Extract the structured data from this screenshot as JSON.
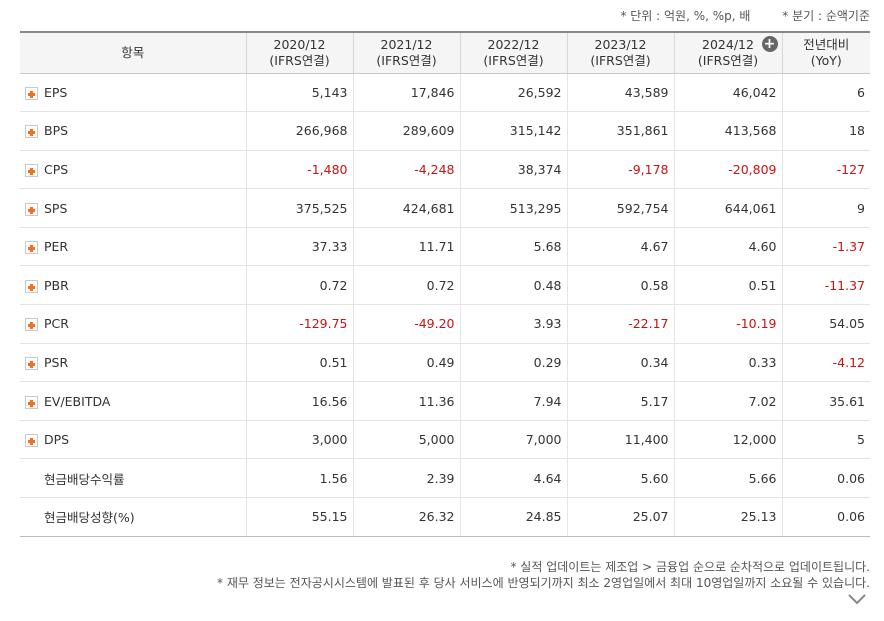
{
  "units": {
    "unit": "* 단위 : 억원, %, %p, 배",
    "basis": "* 분기 : 순액기준"
  },
  "headers": [
    {
      "line1": "항목",
      "line2": ""
    },
    {
      "line1": "2020/12",
      "line2": "(IFRS연결)"
    },
    {
      "line1": "2021/12",
      "line2": "(IFRS연결)"
    },
    {
      "line1": "2022/12",
      "line2": "(IFRS연결)"
    },
    {
      "line1": "2023/12",
      "line2": "(IFRS연결)"
    },
    {
      "line1": "2024/12",
      "line2": "(IFRS연결)"
    },
    {
      "line1": "전년대비",
      "line2": "(YoY)"
    }
  ],
  "add_column_icon": "+",
  "rows": [
    {
      "label": "EPS",
      "expandable": true,
      "values": [
        "5,143",
        "17,846",
        "26,592",
        "43,589",
        "46,042",
        "6"
      ]
    },
    {
      "label": "BPS",
      "expandable": true,
      "values": [
        "266,968",
        "289,609",
        "315,142",
        "351,861",
        "413,568",
        "18"
      ]
    },
    {
      "label": "CPS",
      "expandable": true,
      "values": [
        "-1,480",
        "-4,248",
        "38,374",
        "-9,178",
        "-20,809",
        "-127"
      ]
    },
    {
      "label": "SPS",
      "expandable": true,
      "values": [
        "375,525",
        "424,681",
        "513,295",
        "592,754",
        "644,061",
        "9"
      ]
    },
    {
      "label": "PER",
      "expandable": true,
      "values": [
        "37.33",
        "11.71",
        "5.68",
        "4.67",
        "4.60",
        "-1.37"
      ]
    },
    {
      "label": "PBR",
      "expandable": true,
      "values": [
        "0.72",
        "0.72",
        "0.48",
        "0.58",
        "0.51",
        "-11.37"
      ]
    },
    {
      "label": "PCR",
      "expandable": true,
      "values": [
        "-129.75",
        "-49.20",
        "3.93",
        "-22.17",
        "-10.19",
        "54.05"
      ]
    },
    {
      "label": "PSR",
      "expandable": true,
      "values": [
        "0.51",
        "0.49",
        "0.29",
        "0.34",
        "0.33",
        "-4.12"
      ]
    },
    {
      "label": "EV/EBITDA",
      "expandable": true,
      "values": [
        "16.56",
        "11.36",
        "7.94",
        "5.17",
        "7.02",
        "35.61"
      ]
    },
    {
      "label": "DPS",
      "expandable": true,
      "values": [
        "3,000",
        "5,000",
        "7,000",
        "11,400",
        "12,000",
        "5"
      ]
    },
    {
      "label": "현금배당수익률",
      "expandable": false,
      "values": [
        "1.56",
        "2.39",
        "4.64",
        "5.60",
        "5.66",
        "0.06"
      ]
    },
    {
      "label": "현금배당성향(%)",
      "expandable": false,
      "values": [
        "55.15",
        "26.32",
        "24.85",
        "25.07",
        "25.13",
        "0.06"
      ]
    }
  ],
  "notes": [
    "* 실적 업데이트는 제조업 > 금융업 순으로 순차적으로 업데이트됩니다.",
    "* 재무 정보는 전자공시시스템에 발표된 후 당사 서비스에 반영되기까지 최소 2영업일에서 최대 10영업일까지 소요될 수 있습니다."
  ],
  "colors": {
    "negative": "#cc1111",
    "expand_icon": "#f37021",
    "header_bg": "#f5f5f5"
  }
}
